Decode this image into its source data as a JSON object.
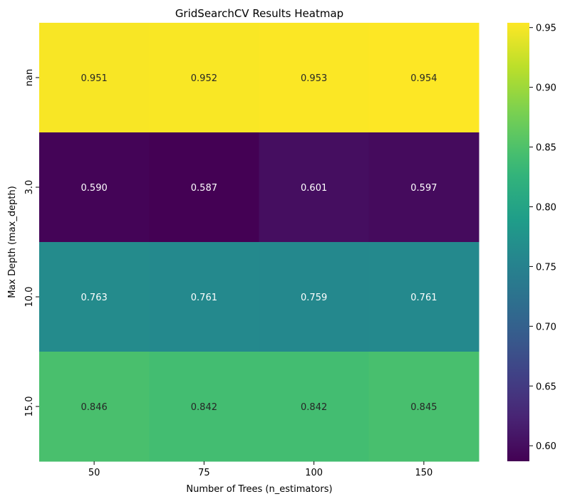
{
  "chart_data": {
    "type": "heatmap",
    "title": "GridSearchCV Results Heatmap",
    "xlabel": "Number of Trees (n_estimators)",
    "ylabel": "Max Depth (max_depth)",
    "x_categories": [
      "50",
      "75",
      "100",
      "150"
    ],
    "y_categories": [
      "nan",
      "3.0",
      "10.0",
      "15.0"
    ],
    "values": [
      [
        0.951,
        0.952,
        0.953,
        0.954
      ],
      [
        0.59,
        0.587,
        0.601,
        0.597
      ],
      [
        0.763,
        0.761,
        0.759,
        0.761
      ],
      [
        0.846,
        0.842,
        0.842,
        0.845
      ]
    ],
    "cell_labels": [
      [
        "0.951",
        "0.952",
        "0.953",
        "0.954"
      ],
      [
        "0.590",
        "0.587",
        "0.601",
        "0.597"
      ],
      [
        "0.763",
        "0.761",
        "0.759",
        "0.761"
      ],
      [
        "0.846",
        "0.842",
        "0.842",
        "0.845"
      ]
    ],
    "colormap": "viridis",
    "vmin": 0.587,
    "vmax": 0.954,
    "colorbar": {
      "ticks": [
        0.6,
        0.65,
        0.7,
        0.75,
        0.8,
        0.85,
        0.9,
        0.95
      ],
      "tick_labels": [
        "0.60",
        "0.65",
        "0.70",
        "0.75",
        "0.80",
        "0.85",
        "0.90",
        "0.95"
      ]
    }
  }
}
